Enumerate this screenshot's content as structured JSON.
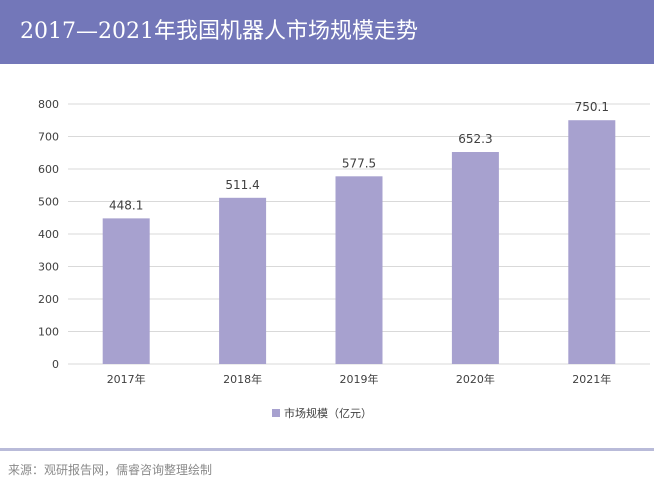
{
  "header": {
    "title": "2017—2021年我国机器人市场规模走势"
  },
  "colors": {
    "header_bg": "#7377b9",
    "bar": "#a7a1cf",
    "grid": "#d9d9d9",
    "divider": "#b9bbd9"
  },
  "chart_data": {
    "type": "bar",
    "categories": [
      "2017年",
      "2018年",
      "2019年",
      "2020年",
      "2021年"
    ],
    "series": [
      {
        "name": "市场规模（亿元）",
        "values": [
          448.1,
          511.4,
          577.5,
          652.3,
          750.1
        ]
      }
    ],
    "ylim": [
      0,
      800
    ],
    "yticks": [
      0,
      100,
      200,
      300,
      400,
      500,
      600,
      700,
      800
    ],
    "grid": true,
    "legend": "bottom",
    "data_labels": true
  },
  "footer": {
    "source": "来源：观研报告网，儒睿咨询整理绘制"
  }
}
